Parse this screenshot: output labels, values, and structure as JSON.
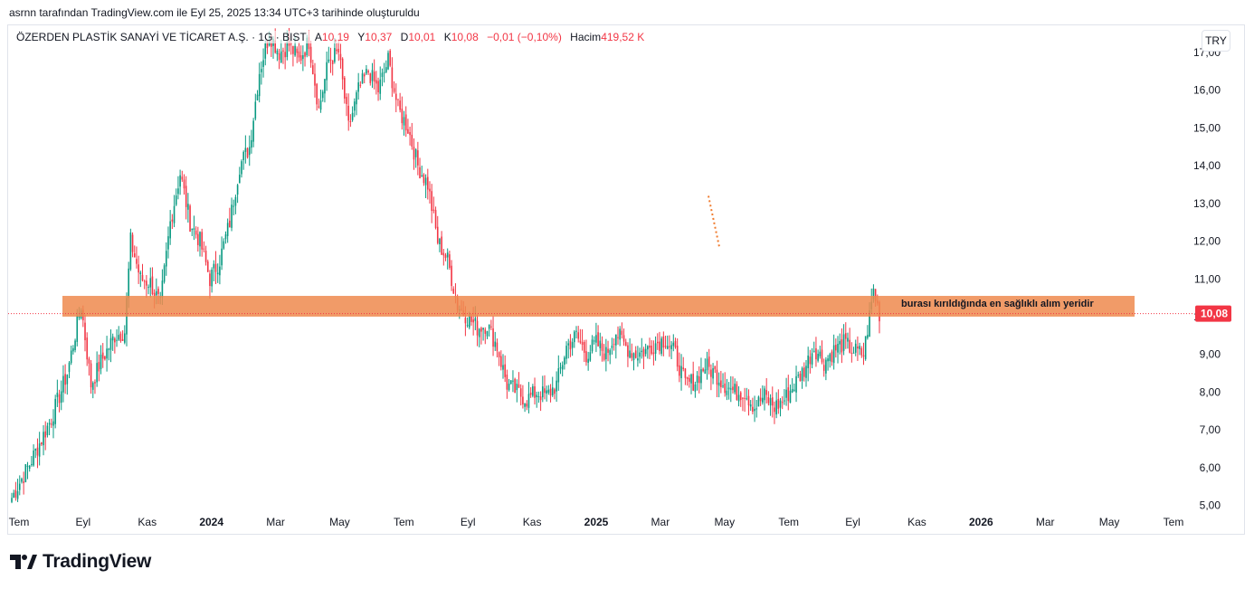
{
  "caption": "asrnn tarafından TradingView.com ile Eyl 25, 2025 13:34 UTC+3 tarihinde oluşturuldu",
  "legend": {
    "symbol": "ÖZERDEN PLASTİK SANAYİ VE TİCARET A.Ş. · 1G · BIST",
    "open_label": "A",
    "open": "10,19",
    "high_label": "Y",
    "high": "10,37",
    "low_label": "D",
    "low": "10,01",
    "close_label": "K",
    "close": "10,08",
    "change": "−0,01 (−0,10%)",
    "volume_label": "Hacim",
    "volume": "419,52 K"
  },
  "currency": "TRY",
  "brand": "TradingView",
  "colors": {
    "up": "#089981",
    "down": "#f23645",
    "zone": "#ef8a4e",
    "price_label": "#f23645"
  },
  "chart_data": {
    "type": "candlestick",
    "ylim": [
      4.7,
      17.6
    ],
    "y_ticks": [
      "5,00",
      "6,00",
      "7,00",
      "8,00",
      "9,00",
      "10,00",
      "11,00",
      "12,00",
      "13,00",
      "14,00",
      "15,00",
      "16,00",
      "17,00"
    ],
    "x_ticks": [
      "Tem",
      "Eyl",
      "Kas",
      "2024",
      "Mar",
      "May",
      "Tem",
      "Eyl",
      "Kas",
      "2025",
      "Mar",
      "May",
      "Tem",
      "Eyl",
      "Kas",
      "2026",
      "Mar",
      "May",
      "Tem"
    ],
    "bold_ticks": [
      "2024",
      "2025",
      "2026"
    ],
    "last_price": "10,08",
    "zone": {
      "low": 10.0,
      "high": 10.55,
      "label": "burası kırıldığında en sağlıklı alım yeridir"
    },
    "path": [
      [
        0,
        5.2
      ],
      [
        10,
        6.2
      ],
      [
        20,
        7.3
      ],
      [
        28,
        8.5
      ],
      [
        35,
        10.3
      ],
      [
        40,
        8.2
      ],
      [
        45,
        8.8
      ],
      [
        52,
        9.5
      ],
      [
        57,
        9.6
      ],
      [
        60,
        12.0
      ],
      [
        65,
        11.0
      ],
      [
        70,
        10.9
      ],
      [
        75,
        10.3
      ],
      [
        80,
        12.5
      ],
      [
        85,
        13.8
      ],
      [
        90,
        12.5
      ],
      [
        95,
        12.0
      ],
      [
        100,
        11.0
      ],
      [
        105,
        11.5
      ],
      [
        110,
        12.5
      ],
      [
        115,
        14.0
      ],
      [
        120,
        14.5
      ],
      [
        125,
        16.5
      ],
      [
        130,
        17.5
      ],
      [
        135,
        17.0
      ],
      [
        140,
        17.2
      ],
      [
        145,
        16.8
      ],
      [
        150,
        17.3
      ],
      [
        155,
        15.5
      ],
      [
        160,
        16.8
      ],
      [
        165,
        17.0
      ],
      [
        170,
        15.0
      ],
      [
        175,
        16.0
      ],
      [
        180,
        16.5
      ],
      [
        185,
        16.0
      ],
      [
        190,
        16.8
      ],
      [
        195,
        15.5
      ],
      [
        200,
        15.0
      ],
      [
        205,
        14.0
      ],
      [
        210,
        13.5
      ],
      [
        215,
        12.0
      ],
      [
        220,
        11.5
      ],
      [
        225,
        10.3
      ],
      [
        230,
        10.0
      ],
      [
        235,
        9.7
      ],
      [
        240,
        9.8
      ],
      [
        245,
        9.2
      ],
      [
        250,
        8.2
      ],
      [
        255,
        8.0
      ],
      [
        260,
        7.8
      ],
      [
        265,
        8.0
      ],
      [
        270,
        7.9
      ],
      [
        275,
        8.2
      ],
      [
        280,
        9.2
      ],
      [
        285,
        9.5
      ],
      [
        290,
        9.0
      ],
      [
        295,
        9.3
      ],
      [
        300,
        9.0
      ],
      [
        305,
        9.6
      ],
      [
        310,
        9.2
      ],
      [
        315,
        9.0
      ],
      [
        320,
        9.1
      ],
      [
        325,
        9.3
      ],
      [
        330,
        9.4
      ],
      [
        335,
        9.0
      ],
      [
        340,
        8.2
      ],
      [
        345,
        8.3
      ],
      [
        350,
        8.7
      ],
      [
        355,
        8.5
      ],
      [
        360,
        8.2
      ],
      [
        365,
        8.0
      ],
      [
        370,
        8.0
      ],
      [
        375,
        7.6
      ],
      [
        380,
        7.9
      ],
      [
        385,
        7.6
      ],
      [
        390,
        7.8
      ],
      [
        395,
        8.2
      ],
      [
        400,
        8.6
      ],
      [
        405,
        9.2
      ],
      [
        410,
        8.8
      ],
      [
        415,
        9.1
      ],
      [
        420,
        9.3
      ],
      [
        425,
        9.1
      ],
      [
        430,
        9.0
      ],
      [
        435,
        10.7
      ],
      [
        438,
        10.08
      ]
    ]
  }
}
